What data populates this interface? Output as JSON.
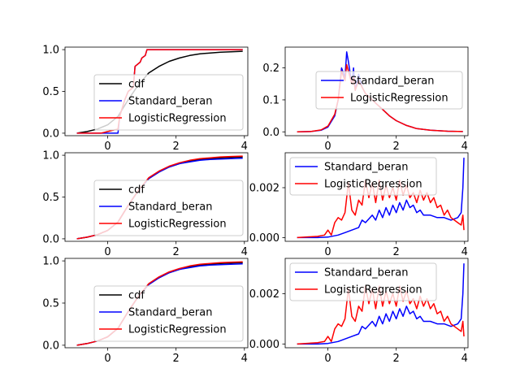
{
  "chart_data": [
    {
      "type": "line",
      "xlim": [
        -1.25,
        4.1
      ],
      "ylim": [
        -0.03,
        1.03
      ],
      "xticks": [
        0,
        2,
        4
      ],
      "yticks": [
        0.0,
        0.5,
        1.0
      ],
      "xtick_labels": [
        "0",
        "2",
        "4"
      ],
      "ytick_labels": [
        "0.0",
        "0.5",
        "1.0"
      ],
      "legend_position": "lower-right",
      "series": [
        {
          "name": "cdf",
          "color": "#000000",
          "x": [
            -0.9,
            -0.6,
            -0.3,
            0.0,
            0.3,
            0.6,
            0.9,
            1.2,
            1.5,
            1.8,
            2.1,
            2.4,
            2.7,
            3.0,
            3.3,
            3.6,
            3.95
          ],
          "y": [
            0.0,
            0.02,
            0.05,
            0.1,
            0.2,
            0.4,
            0.58,
            0.72,
            0.8,
            0.86,
            0.9,
            0.93,
            0.95,
            0.96,
            0.97,
            0.975,
            0.98
          ]
        },
        {
          "name": "Standard_beran",
          "color": "#0000ff",
          "x": [
            -0.9,
            0.3,
            0.35,
            0.5,
            0.6,
            0.75,
            0.8,
            0.95,
            1.0,
            1.1,
            1.15,
            3.95
          ],
          "y": [
            0.0,
            0.0,
            0.2,
            0.4,
            0.5,
            0.55,
            0.8,
            0.85,
            0.9,
            0.93,
            1.0,
            1.0
          ]
        },
        {
          "name": "LogisticRegression",
          "color": "#ff0000",
          "x": [
            -0.9,
            -0.2,
            0.0,
            0.3,
            0.35,
            0.5,
            0.6,
            0.75,
            0.8,
            0.95,
            1.0,
            1.1,
            1.15,
            3.95
          ],
          "y": [
            0.0,
            0.0,
            0.02,
            0.05,
            0.2,
            0.4,
            0.5,
            0.55,
            0.8,
            0.85,
            0.9,
            0.93,
            1.0,
            1.0
          ]
        }
      ]
    },
    {
      "type": "line",
      "xlim": [
        -1.25,
        4.1
      ],
      "ylim": [
        -0.012,
        0.265
      ],
      "xticks": [
        0,
        2,
        4
      ],
      "yticks": [
        0.0,
        0.1,
        0.2
      ],
      "xtick_labels": [
        "0",
        "2",
        "4"
      ],
      "ytick_labels": [
        "0.0",
        "0.1",
        "0.2"
      ],
      "legend_position": "upper-right",
      "series": [
        {
          "name": "Standard_beran",
          "color": "#0000ff",
          "x": [
            -0.9,
            -0.5,
            -0.2,
            0.0,
            0.2,
            0.3,
            0.4,
            0.5,
            0.55,
            0.6,
            0.7,
            0.75,
            0.8,
            0.9,
            1.0,
            1.1,
            1.2,
            1.4,
            1.6,
            1.8,
            2.0,
            2.3,
            2.6,
            3.0,
            3.5,
            3.95
          ],
          "y": [
            0.0,
            0.001,
            0.005,
            0.015,
            0.05,
            0.1,
            0.2,
            0.17,
            0.25,
            0.22,
            0.15,
            0.2,
            0.13,
            0.18,
            0.14,
            0.12,
            0.11,
            0.09,
            0.07,
            0.05,
            0.035,
            0.02,
            0.01,
            0.005,
            0.002,
            0.001
          ]
        },
        {
          "name": "LogisticRegression",
          "color": "#ff0000",
          "x": [
            -0.9,
            -0.5,
            -0.2,
            0.0,
            0.2,
            0.3,
            0.4,
            0.5,
            0.55,
            0.6,
            0.7,
            0.75,
            0.8,
            0.9,
            1.0,
            1.1,
            1.2,
            1.4,
            1.6,
            1.8,
            2.0,
            2.3,
            2.6,
            3.0,
            3.5,
            3.95
          ],
          "y": [
            0.0,
            0.001,
            0.006,
            0.018,
            0.055,
            0.1,
            0.19,
            0.16,
            0.21,
            0.19,
            0.15,
            0.17,
            0.13,
            0.16,
            0.14,
            0.12,
            0.11,
            0.09,
            0.07,
            0.05,
            0.035,
            0.02,
            0.01,
            0.005,
            0.002,
            0.001
          ]
        }
      ]
    },
    {
      "type": "line",
      "xlim": [
        -1.25,
        4.1
      ],
      "ylim": [
        -0.03,
        1.03
      ],
      "xticks": [
        0,
        2,
        4
      ],
      "yticks": [
        0.0,
        0.5,
        1.0
      ],
      "xtick_labels": [
        "0",
        "2",
        "4"
      ],
      "ytick_labels": [
        "0.0",
        "0.5",
        "1.0"
      ],
      "legend_position": "lower-right",
      "series": [
        {
          "name": "cdf",
          "color": "#000000",
          "x": [
            -0.9,
            -0.6,
            -0.3,
            0.0,
            0.3,
            0.6,
            0.9,
            1.2,
            1.5,
            1.8,
            2.1,
            2.4,
            2.7,
            3.0,
            3.3,
            3.6,
            3.95
          ],
          "y": [
            0.0,
            0.02,
            0.05,
            0.1,
            0.2,
            0.4,
            0.58,
            0.72,
            0.8,
            0.86,
            0.9,
            0.93,
            0.95,
            0.96,
            0.97,
            0.975,
            0.98
          ]
        },
        {
          "name": "Standard_beran",
          "color": "#0000ff",
          "x": [
            -0.9,
            -0.6,
            -0.3,
            0.0,
            0.3,
            0.6,
            0.9,
            1.2,
            1.5,
            1.8,
            2.1,
            2.4,
            2.7,
            3.0,
            3.3,
            3.6,
            3.95
          ],
          "y": [
            0.0,
            0.02,
            0.05,
            0.1,
            0.2,
            0.4,
            0.58,
            0.72,
            0.8,
            0.86,
            0.9,
            0.92,
            0.94,
            0.95,
            0.955,
            0.96,
            0.965
          ]
        },
        {
          "name": "LogisticRegression",
          "color": "#ff0000",
          "x": [
            -0.9,
            -0.6,
            -0.3,
            0.0,
            0.3,
            0.6,
            0.9,
            1.2,
            1.5,
            1.8,
            2.1,
            2.4,
            2.7,
            3.0,
            3.3,
            3.6,
            3.95
          ],
          "y": [
            0.0,
            0.02,
            0.05,
            0.1,
            0.2,
            0.4,
            0.58,
            0.73,
            0.81,
            0.87,
            0.91,
            0.94,
            0.96,
            0.97,
            0.98,
            0.985,
            0.99
          ]
        }
      ]
    },
    {
      "type": "line",
      "xlim": [
        -1.25,
        4.1
      ],
      "ylim": [
        -0.00015,
        0.0034
      ],
      "xticks": [
        0,
        2,
        4
      ],
      "yticks": [
        0.0,
        0.002
      ],
      "xtick_labels": [
        "0",
        "2",
        "4"
      ],
      "ytick_labels": [
        "0.000",
        "0.002"
      ],
      "legend_position": "upper-left",
      "series": [
        {
          "name": "Standard_beran",
          "color": "#0000ff",
          "x": [
            -0.9,
            -0.3,
            0.0,
            0.3,
            0.5,
            0.7,
            0.9,
            1.0,
            1.1,
            1.3,
            1.4,
            1.5,
            1.6,
            1.7,
            1.8,
            1.9,
            2.0,
            2.1,
            2.2,
            2.3,
            2.4,
            2.5,
            2.6,
            2.7,
            2.8,
            3.0,
            3.2,
            3.4,
            3.6,
            3.8,
            3.9,
            3.95,
            3.98
          ],
          "y": [
            0.0,
            0.0,
            2e-05,
            0.0001,
            0.0002,
            0.0003,
            0.0004,
            0.0007,
            0.0006,
            0.0009,
            0.0007,
            0.0011,
            0.0008,
            0.0012,
            0.0009,
            0.0013,
            0.001,
            0.0014,
            0.0011,
            0.0015,
            0.0012,
            0.0013,
            0.001,
            0.0011,
            0.0009,
            0.0009,
            0.0008,
            0.0008,
            0.0007,
            0.0008,
            0.001,
            0.002,
            0.0032
          ]
        },
        {
          "name": "LogisticRegression",
          "color": "#ff0000",
          "x": [
            -0.9,
            -0.3,
            -0.1,
            0.0,
            0.1,
            0.2,
            0.3,
            0.4,
            0.5,
            0.6,
            0.7,
            0.8,
            0.9,
            1.0,
            1.1,
            1.2,
            1.3,
            1.4,
            1.5,
            1.6,
            1.7,
            1.8,
            1.9,
            2.0,
            2.1,
            2.2,
            2.3,
            2.4,
            2.5,
            2.6,
            2.7,
            2.8,
            2.9,
            3.0,
            3.1,
            3.2,
            3.3,
            3.4,
            3.5,
            3.6,
            3.7,
            3.8,
            3.9,
            3.95,
            3.98
          ],
          "y": [
            0.0,
            5e-05,
            0.0001,
            0.0003,
            0.0001,
            0.0006,
            0.0008,
            0.0007,
            0.001,
            0.0022,
            0.0011,
            0.0009,
            0.0015,
            0.0013,
            0.0023,
            0.0016,
            0.0022,
            0.0014,
            0.0023,
            0.0015,
            0.0021,
            0.0016,
            0.002,
            0.0015,
            0.0023,
            0.0017,
            0.0021,
            0.0016,
            0.0018,
            0.0014,
            0.0019,
            0.0015,
            0.0018,
            0.0014,
            0.0016,
            0.0012,
            0.0013,
            0.0009,
            0.0011,
            0.0008,
            0.0007,
            0.0006,
            0.0005,
            0.0009,
            0.0003
          ]
        }
      ]
    },
    {
      "type": "line",
      "xlim": [
        -1.25,
        4.1
      ],
      "ylim": [
        -0.03,
        1.03
      ],
      "xticks": [
        0,
        2,
        4
      ],
      "yticks": [
        0.0,
        0.5,
        1.0
      ],
      "xtick_labels": [
        "0",
        "2",
        "4"
      ],
      "ytick_labels": [
        "0.0",
        "0.5",
        "1.0"
      ],
      "legend_position": "lower-right",
      "series": [
        {
          "name": "cdf",
          "color": "#000000",
          "x": [
            -0.9,
            -0.6,
            -0.3,
            0.0,
            0.3,
            0.6,
            0.9,
            1.2,
            1.5,
            1.8,
            2.1,
            2.4,
            2.7,
            3.0,
            3.3,
            3.6,
            3.95
          ],
          "y": [
            0.0,
            0.02,
            0.05,
            0.1,
            0.2,
            0.4,
            0.58,
            0.72,
            0.8,
            0.86,
            0.9,
            0.93,
            0.95,
            0.96,
            0.97,
            0.975,
            0.98
          ]
        },
        {
          "name": "Standard_beran",
          "color": "#0000ff",
          "x": [
            -0.9,
            -0.6,
            -0.3,
            0.0,
            0.3,
            0.6,
            0.9,
            1.2,
            1.5,
            1.8,
            2.1,
            2.4,
            2.7,
            3.0,
            3.3,
            3.6,
            3.95
          ],
          "y": [
            0.0,
            0.02,
            0.05,
            0.1,
            0.2,
            0.4,
            0.58,
            0.72,
            0.8,
            0.86,
            0.9,
            0.92,
            0.94,
            0.95,
            0.955,
            0.96,
            0.965
          ]
        },
        {
          "name": "LogisticRegression",
          "color": "#ff0000",
          "x": [
            -0.9,
            -0.6,
            -0.3,
            0.0,
            0.3,
            0.6,
            0.9,
            1.2,
            1.5,
            1.8,
            2.1,
            2.4,
            2.7,
            3.0,
            3.3,
            3.6,
            3.95
          ],
          "y": [
            0.0,
            0.02,
            0.05,
            0.1,
            0.2,
            0.4,
            0.58,
            0.73,
            0.81,
            0.87,
            0.91,
            0.94,
            0.96,
            0.97,
            0.98,
            0.985,
            0.99
          ]
        }
      ]
    },
    {
      "type": "line",
      "xlim": [
        -1.25,
        4.1
      ],
      "ylim": [
        -0.00015,
        0.0034
      ],
      "xticks": [
        0,
        2,
        4
      ],
      "yticks": [
        0.0,
        0.002
      ],
      "xtick_labels": [
        "0",
        "2",
        "4"
      ],
      "ytick_labels": [
        "0.000",
        "0.002"
      ],
      "legend_position": "upper-left",
      "series": [
        {
          "name": "Standard_beran",
          "color": "#0000ff",
          "x": [
            -0.9,
            -0.3,
            0.0,
            0.3,
            0.5,
            0.7,
            0.9,
            1.0,
            1.1,
            1.3,
            1.4,
            1.5,
            1.6,
            1.7,
            1.8,
            1.9,
            2.0,
            2.1,
            2.2,
            2.3,
            2.4,
            2.5,
            2.6,
            2.7,
            2.8,
            3.0,
            3.2,
            3.4,
            3.6,
            3.8,
            3.9,
            3.95,
            3.98
          ],
          "y": [
            0.0,
            0.0,
            2e-05,
            0.0001,
            0.0002,
            0.0003,
            0.0004,
            0.0007,
            0.0006,
            0.0009,
            0.0007,
            0.0011,
            0.0008,
            0.0012,
            0.0009,
            0.0013,
            0.001,
            0.0014,
            0.0011,
            0.0015,
            0.0012,
            0.0013,
            0.001,
            0.0011,
            0.0009,
            0.0009,
            0.0008,
            0.0008,
            0.0007,
            0.0008,
            0.001,
            0.002,
            0.0032
          ]
        },
        {
          "name": "LogisticRegression",
          "color": "#ff0000",
          "x": [
            -0.9,
            -0.3,
            -0.1,
            0.0,
            0.1,
            0.2,
            0.3,
            0.4,
            0.5,
            0.6,
            0.7,
            0.8,
            0.9,
            1.0,
            1.1,
            1.2,
            1.3,
            1.4,
            1.5,
            1.6,
            1.7,
            1.8,
            1.9,
            2.0,
            2.1,
            2.2,
            2.3,
            2.4,
            2.5,
            2.6,
            2.7,
            2.8,
            2.9,
            3.0,
            3.1,
            3.2,
            3.3,
            3.4,
            3.5,
            3.6,
            3.7,
            3.8,
            3.9,
            3.95,
            3.98
          ],
          "y": [
            0.0,
            5e-05,
            0.0001,
            0.0003,
            0.0001,
            0.0006,
            0.0008,
            0.0007,
            0.001,
            0.0022,
            0.0011,
            0.0009,
            0.0015,
            0.0013,
            0.0023,
            0.0016,
            0.0022,
            0.0014,
            0.0023,
            0.0015,
            0.0021,
            0.0016,
            0.002,
            0.0015,
            0.0023,
            0.0017,
            0.0021,
            0.0016,
            0.0018,
            0.0014,
            0.0019,
            0.0015,
            0.0018,
            0.0014,
            0.0016,
            0.0012,
            0.0013,
            0.0009,
            0.0011,
            0.0008,
            0.0007,
            0.0006,
            0.0005,
            0.0009,
            0.0003
          ]
        }
      ]
    }
  ]
}
